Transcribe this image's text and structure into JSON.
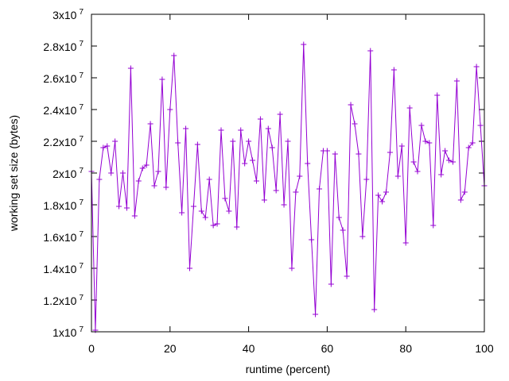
{
  "chart_data": {
    "type": "line",
    "title": "",
    "xlabel": "runtime (percent)",
    "ylabel": "working set size (bytes)",
    "xlim": [
      0,
      100
    ],
    "ylim": [
      10000000,
      30000000
    ],
    "x_ticks": [
      {
        "value": 0,
        "label": "0"
      },
      {
        "value": 20,
        "label": "20"
      },
      {
        "value": 40,
        "label": "40"
      },
      {
        "value": 60,
        "label": "60"
      },
      {
        "value": 80,
        "label": "80"
      },
      {
        "value": 100,
        "label": "100"
      }
    ],
    "y_ticks": [
      {
        "value": 10000000,
        "mantissa": "1x10",
        "exponent": "7"
      },
      {
        "value": 12000000,
        "mantissa": "1.2x10",
        "exponent": "7"
      },
      {
        "value": 14000000,
        "mantissa": "1.4x10",
        "exponent": "7"
      },
      {
        "value": 16000000,
        "mantissa": "1.6x10",
        "exponent": "7"
      },
      {
        "value": 18000000,
        "mantissa": "1.8x10",
        "exponent": "7"
      },
      {
        "value": 20000000,
        "mantissa": "2x10",
        "exponent": "7"
      },
      {
        "value": 22000000,
        "mantissa": "2.2x10",
        "exponent": "7"
      },
      {
        "value": 24000000,
        "mantissa": "2.4x10",
        "exponent": "7"
      },
      {
        "value": 26000000,
        "mantissa": "2.6x10",
        "exponent": "7"
      },
      {
        "value": 28000000,
        "mantissa": "2.8x10",
        "exponent": "7"
      },
      {
        "value": 30000000,
        "mantissa": "3x10",
        "exponent": "7"
      }
    ],
    "grid": false,
    "legend": "none",
    "series": [
      {
        "color": "#9400d3",
        "marker": "plus",
        "x": [
          0,
          1,
          2,
          3,
          4,
          5,
          6,
          7,
          8,
          9,
          10,
          11,
          12,
          13,
          14,
          15,
          16,
          17,
          18,
          19,
          20,
          21,
          22,
          23,
          24,
          25,
          26,
          27,
          28,
          29,
          30,
          31,
          32,
          33,
          34,
          35,
          36,
          37,
          38,
          39,
          40,
          41,
          42,
          43,
          44,
          45,
          46,
          47,
          48,
          49,
          50,
          51,
          52,
          53,
          54,
          55,
          56,
          57,
          58,
          59,
          60,
          61,
          62,
          63,
          64,
          65,
          66,
          67,
          68,
          69,
          70,
          71,
          72,
          73,
          74,
          75,
          76,
          77,
          78,
          79,
          80,
          81,
          82,
          83,
          84,
          85,
          86,
          87,
          88,
          89,
          90,
          91,
          92,
          93,
          94,
          95,
          96,
          97,
          98,
          99,
          100
        ],
        "values": [
          20100000,
          10100000,
          19600000,
          21600000,
          21700000,
          20000000,
          22000000,
          17900000,
          20000000,
          17800000,
          26600000,
          17300000,
          19500000,
          20300000,
          20500000,
          23100000,
          19200000,
          20100000,
          25900000,
          19100000,
          24000000,
          27400000,
          21900000,
          17500000,
          22800000,
          14000000,
          17900000,
          21800000,
          17600000,
          17200000,
          19600000,
          16700000,
          16800000,
          22700000,
          18400000,
          17600000,
          22000000,
          16600000,
          22700000,
          20600000,
          22000000,
          20800000,
          19500000,
          23400000,
          18300000,
          22800000,
          21600000,
          18900000,
          23700000,
          18000000,
          22000000,
          14000000,
          18800000,
          19800000,
          28100000,
          20600000,
          15800000,
          11100000,
          19000000,
          21400000,
          21400000,
          13000000,
          21200000,
          17200000,
          16400000,
          13500000,
          24300000,
          23100000,
          21200000,
          16000000,
          19600000,
          27700000,
          11400000,
          18600000,
          18200000,
          18800000,
          21300000,
          26500000,
          19800000,
          21700000,
          15600000,
          24100000,
          20700000,
          20100000,
          23000000,
          22000000,
          21900000,
          16700000,
          24900000,
          19900000,
          21400000,
          20800000,
          20700000,
          25800000,
          18300000,
          18800000,
          21600000,
          21900000,
          26700000,
          23000000,
          19200000
        ]
      }
    ]
  }
}
